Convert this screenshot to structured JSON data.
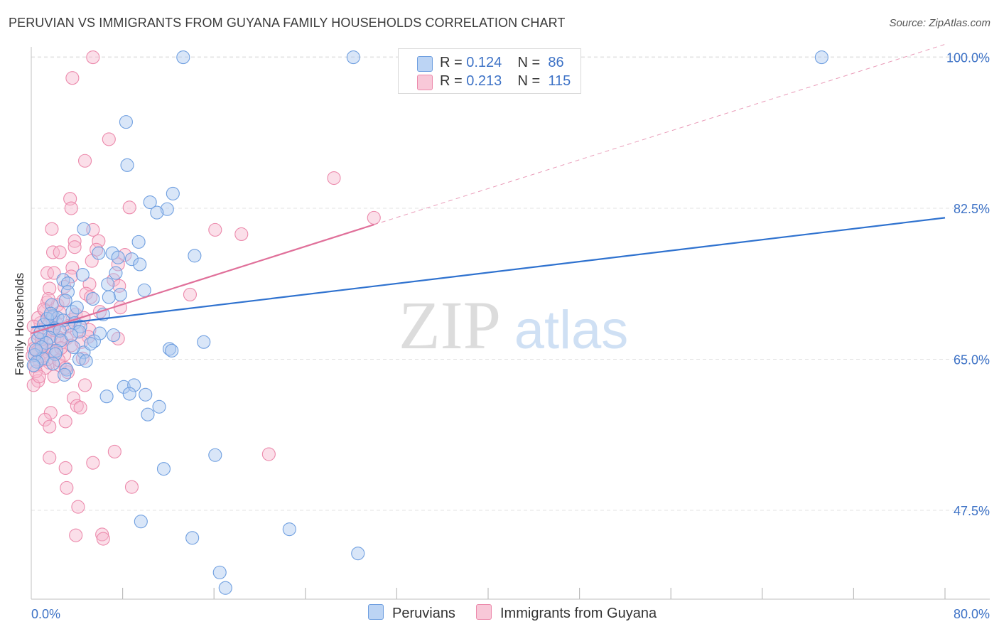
{
  "title": "PERUVIAN VS IMMIGRANTS FROM GUYANA FAMILY HOUSEHOLDS CORRELATION CHART",
  "source": "Source: ZipAtlas.com",
  "watermark": {
    "zip": "ZIP",
    "atlas": "atlas"
  },
  "legend": {
    "r_label": "R =",
    "n_label": "N =",
    "series": [
      {
        "r": "0.124",
        "n": "86"
      },
      {
        "r": "0.213",
        "n": "115"
      }
    ]
  },
  "colors": {
    "blue_fill": "#aac8f0",
    "blue_stroke": "#6f9fe0",
    "blue_line": "#2f72cf",
    "pink_fill": "#f6b9cf",
    "pink_stroke": "#ec8aac",
    "pink_line": "#e0709a",
    "axis_text": "#3d72c6",
    "grid": "#e3e3e3"
  },
  "chart_data": {
    "type": "scatter",
    "title": "PERUVIAN VS IMMIGRANTS FROM GUYANA FAMILY HOUSEHOLDS CORRELATION CHART",
    "xlabel": "",
    "ylabel": "Family Households",
    "xlim": [
      0,
      80
    ],
    "ylim": [
      37.2,
      101.2
    ],
    "x_tick_labels": [
      "0.0%",
      "80.0%"
    ],
    "y_ticks": [
      47.5,
      65.0,
      82.5,
      100.0
    ],
    "y_tick_labels": [
      "47.5%",
      "65.0%",
      "82.5%",
      "100.0%"
    ],
    "series": [
      {
        "name": "Peruvians",
        "r": 0.124,
        "n": 86,
        "trend": {
          "x0": 0,
          "y0": 68.7,
          "x1": 80,
          "y1": 81.4
        },
        "points": [
          [
            13.3,
            100
          ],
          [
            28.2,
            100
          ],
          [
            69.2,
            100
          ],
          [
            8.3,
            92.5
          ],
          [
            8.4,
            87.5
          ],
          [
            12.4,
            84.2
          ],
          [
            10.4,
            83.2
          ],
          [
            11.9,
            82.4
          ],
          [
            11.0,
            82.0
          ],
          [
            4.6,
            80.1
          ],
          [
            9.4,
            78.6
          ],
          [
            5.9,
            77.3
          ],
          [
            7.1,
            77.3
          ],
          [
            14.3,
            77.0
          ],
          [
            7.6,
            76.8
          ],
          [
            8.8,
            76.6
          ],
          [
            9.5,
            76.0
          ],
          [
            7.4,
            75.0
          ],
          [
            4.5,
            74.8
          ],
          [
            2.8,
            74.2
          ],
          [
            3.2,
            73.8
          ],
          [
            6.7,
            73.7
          ],
          [
            9.9,
            73.0
          ],
          [
            3.2,
            72.8
          ],
          [
            7.8,
            72.5
          ],
          [
            6.8,
            72.2
          ],
          [
            5.4,
            72.0
          ],
          [
            3.0,
            71.8
          ],
          [
            1.8,
            71.3
          ],
          [
            3.6,
            70.5
          ],
          [
            1.9,
            70.0
          ],
          [
            2.3,
            69.8
          ],
          [
            2.8,
            69.5
          ],
          [
            3.8,
            69.2
          ],
          [
            1.1,
            69.0
          ],
          [
            4.3,
            68.8
          ],
          [
            2.0,
            68.6
          ],
          [
            2.5,
            68.3
          ],
          [
            4.2,
            68.2
          ],
          [
            6.0,
            68.0
          ],
          [
            7.2,
            67.8
          ],
          [
            1.6,
            67.5
          ],
          [
            0.6,
            67.4
          ],
          [
            2.6,
            67.2
          ],
          [
            5.5,
            67.1
          ],
          [
            1.3,
            66.9
          ],
          [
            15.1,
            67.0
          ],
          [
            0.9,
            66.4
          ],
          [
            2.2,
            66.0
          ],
          [
            12.1,
            66.2
          ],
          [
            12.3,
            66.0
          ],
          [
            4.6,
            65.8
          ],
          [
            0.3,
            65.5
          ],
          [
            1.0,
            65.1
          ],
          [
            4.2,
            65.0
          ],
          [
            4.8,
            64.8
          ],
          [
            0.5,
            64.7
          ],
          [
            0.2,
            64.3
          ],
          [
            3.1,
            63.8
          ],
          [
            8.1,
            61.8
          ],
          [
            9.0,
            62.0
          ],
          [
            8.6,
            61.0
          ],
          [
            10.0,
            60.9
          ],
          [
            6.6,
            60.7
          ],
          [
            11.2,
            59.5
          ],
          [
            10.2,
            58.6
          ],
          [
            16.1,
            53.9
          ],
          [
            11.6,
            52.3
          ],
          [
            9.6,
            46.2
          ],
          [
            22.6,
            45.3
          ],
          [
            14.1,
            44.3
          ],
          [
            28.6,
            42.5
          ],
          [
            16.5,
            40.3
          ],
          [
            17.0,
            38.5
          ],
          [
            1.4,
            69.7
          ],
          [
            3.5,
            67.8
          ],
          [
            2.1,
            65.6
          ],
          [
            1.7,
            70.3
          ],
          [
            0.8,
            68.1
          ],
          [
            4.0,
            71.0
          ],
          [
            6.3,
            70.2
          ],
          [
            5.2,
            66.8
          ],
          [
            2.9,
            63.2
          ],
          [
            3.7,
            66.4
          ],
          [
            0.4,
            66.1
          ],
          [
            1.9,
            64.5
          ]
        ]
      },
      {
        "name": "Immigrants from Guyana",
        "r": 0.213,
        "n": 115,
        "trend": {
          "x0": 0,
          "y0": 68.0,
          "x1": 30,
          "y1": 80.6
        },
        "ext": {
          "x0": 30,
          "y0": 80.6,
          "x1": 80,
          "y1": 101.5
        },
        "points": [
          [
            5.4,
            100
          ],
          [
            3.6,
            97.6
          ],
          [
            6.8,
            90.5
          ],
          [
            4.7,
            88.0
          ],
          [
            26.5,
            86.0
          ],
          [
            3.4,
            83.6
          ],
          [
            3.5,
            82.5
          ],
          [
            8.6,
            82.6
          ],
          [
            30.0,
            81.4
          ],
          [
            1.8,
            80.1
          ],
          [
            5.4,
            80.0
          ],
          [
            16.1,
            80.0
          ],
          [
            18.4,
            79.5
          ],
          [
            3.8,
            78.7
          ],
          [
            5.9,
            78.7
          ],
          [
            3.8,
            78.0
          ],
          [
            1.9,
            77.4
          ],
          [
            2.5,
            77.4
          ],
          [
            5.7,
            77.7
          ],
          [
            8.2,
            77.1
          ],
          [
            5.3,
            76.4
          ],
          [
            7.6,
            76.0
          ],
          [
            3.6,
            75.6
          ],
          [
            1.4,
            75.0
          ],
          [
            2.0,
            75.0
          ],
          [
            3.5,
            74.6
          ],
          [
            7.2,
            74.2
          ],
          [
            5.1,
            73.7
          ],
          [
            1.6,
            73.2
          ],
          [
            2.9,
            73.4
          ],
          [
            7.7,
            73.5
          ],
          [
            4.8,
            72.6
          ],
          [
            13.9,
            72.5
          ],
          [
            5.2,
            72.2
          ],
          [
            1.4,
            71.6
          ],
          [
            2.3,
            71.3
          ],
          [
            7.8,
            71.0
          ],
          [
            1.2,
            70.6
          ],
          [
            2.5,
            70.4
          ],
          [
            1.6,
            70.0
          ],
          [
            3.6,
            69.6
          ],
          [
            0.8,
            69.2
          ],
          [
            1.5,
            69.0
          ],
          [
            2.0,
            68.7
          ],
          [
            2.7,
            68.5
          ],
          [
            4.0,
            68.2
          ],
          [
            5.1,
            68.4
          ],
          [
            0.5,
            68.0
          ],
          [
            1.1,
            67.8
          ],
          [
            2.3,
            67.6
          ],
          [
            3.1,
            67.4
          ],
          [
            5.0,
            67.6
          ],
          [
            7.6,
            67.4
          ],
          [
            1.6,
            67.1
          ],
          [
            0.3,
            67.0
          ],
          [
            2.7,
            67.0
          ],
          [
            0.8,
            66.6
          ],
          [
            3.5,
            66.6
          ],
          [
            0.2,
            66.2
          ],
          [
            1.3,
            66.2
          ],
          [
            0.5,
            65.9
          ],
          [
            2.0,
            65.8
          ],
          [
            2.9,
            65.5
          ],
          [
            0.1,
            65.4
          ],
          [
            1.0,
            65.3
          ],
          [
            4.5,
            65.1
          ],
          [
            0.7,
            64.8
          ],
          [
            1.6,
            64.6
          ],
          [
            2.5,
            64.3
          ],
          [
            0.3,
            64.2
          ],
          [
            1.2,
            64.0
          ],
          [
            3.2,
            63.5
          ],
          [
            2.0,
            63.0
          ],
          [
            0.6,
            62.5
          ],
          [
            0.2,
            62.0
          ],
          [
            4.7,
            62.0
          ],
          [
            3.7,
            60.5
          ],
          [
            4.0,
            59.6
          ],
          [
            4.3,
            59.4
          ],
          [
            1.7,
            58.8
          ],
          [
            1.2,
            58.0
          ],
          [
            3.0,
            57.8
          ],
          [
            1.6,
            57.2
          ],
          [
            7.3,
            54.3
          ],
          [
            20.8,
            54.0
          ],
          [
            1.6,
            53.6
          ],
          [
            5.4,
            53.0
          ],
          [
            3.0,
            52.4
          ],
          [
            8.8,
            50.2
          ],
          [
            3.1,
            50.1
          ],
          [
            4.1,
            47.9
          ],
          [
            3.9,
            44.6
          ],
          [
            6.2,
            44.7
          ],
          [
            6.3,
            44.2
          ],
          [
            0.9,
            66.5
          ],
          [
            1.9,
            68.4
          ],
          [
            2.4,
            64.9
          ],
          [
            0.4,
            63.6
          ],
          [
            1.5,
            72.0
          ],
          [
            2.8,
            71.8
          ],
          [
            3.9,
            70.2
          ],
          [
            4.6,
            69.8
          ],
          [
            6.0,
            70.5
          ],
          [
            0.6,
            69.8
          ],
          [
            1.1,
            70.8
          ],
          [
            2.2,
            69.2
          ],
          [
            3.3,
            68.9
          ],
          [
            0.9,
            67.3
          ],
          [
            1.8,
            66.0
          ],
          [
            2.6,
            66.3
          ],
          [
            0.2,
            68.8
          ],
          [
            1.4,
            65.0
          ],
          [
            3.0,
            64.0
          ],
          [
            0.7,
            63.0
          ],
          [
            4.4,
            67.0
          ]
        ]
      }
    ],
    "legend_placement": "top-center"
  }
}
